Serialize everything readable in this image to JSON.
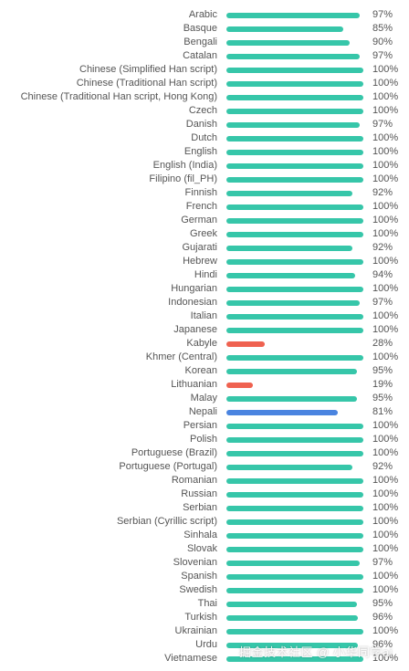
{
  "colors": {
    "complete": "#36c6a9",
    "partial": "#4a84e0",
    "low": "#ef6250"
  },
  "rows": [
    {
      "name": "Arabic",
      "percent": 97,
      "label": "97%"
    },
    {
      "name": "Basque",
      "percent": 85,
      "label": "85%"
    },
    {
      "name": "Bengali",
      "percent": 90,
      "label": "90%"
    },
    {
      "name": "Catalan",
      "percent": 97,
      "label": "97%"
    },
    {
      "name": "Chinese (Simplified Han script)",
      "percent": 100,
      "label": "100%"
    },
    {
      "name": "Chinese (Traditional Han script)",
      "percent": 100,
      "label": "100%"
    },
    {
      "name": "Chinese (Traditional Han script, Hong Kong)",
      "percent": 100,
      "label": "100%"
    },
    {
      "name": "Czech",
      "percent": 100,
      "label": "100%"
    },
    {
      "name": "Danish",
      "percent": 97,
      "label": "97%"
    },
    {
      "name": "Dutch",
      "percent": 100,
      "label": "100%"
    },
    {
      "name": "English",
      "percent": 100,
      "label": "100%"
    },
    {
      "name": "English (India)",
      "percent": 100,
      "label": "100%"
    },
    {
      "name": "Filipino (fil_PH)",
      "percent": 100,
      "label": "100%"
    },
    {
      "name": "Finnish",
      "percent": 92,
      "label": "92%"
    },
    {
      "name": "French",
      "percent": 100,
      "label": "100%"
    },
    {
      "name": "German",
      "percent": 100,
      "label": "100%"
    },
    {
      "name": "Greek",
      "percent": 100,
      "label": "100%"
    },
    {
      "name": "Gujarati",
      "percent": 92,
      "label": "92%"
    },
    {
      "name": "Hebrew",
      "percent": 100,
      "label": "100%"
    },
    {
      "name": "Hindi",
      "percent": 94,
      "label": "94%"
    },
    {
      "name": "Hungarian",
      "percent": 100,
      "label": "100%"
    },
    {
      "name": "Indonesian",
      "percent": 97,
      "label": "97%"
    },
    {
      "name": "Italian",
      "percent": 100,
      "label": "100%"
    },
    {
      "name": "Japanese",
      "percent": 100,
      "label": "100%"
    },
    {
      "name": "Kabyle",
      "percent": 28,
      "label": "28%"
    },
    {
      "name": "Khmer (Central)",
      "percent": 100,
      "label": "100%"
    },
    {
      "name": "Korean",
      "percent": 95,
      "label": "95%"
    },
    {
      "name": "Lithuanian",
      "percent": 19,
      "label": "19%"
    },
    {
      "name": "Malay",
      "percent": 95,
      "label": "95%"
    },
    {
      "name": "Nepali",
      "percent": 81,
      "label": "81%"
    },
    {
      "name": "Persian",
      "percent": 100,
      "label": "100%"
    },
    {
      "name": "Polish",
      "percent": 100,
      "label": "100%"
    },
    {
      "name": "Portuguese (Brazil)",
      "percent": 100,
      "label": "100%"
    },
    {
      "name": "Portuguese (Portugal)",
      "percent": 92,
      "label": "92%"
    },
    {
      "name": "Romanian",
      "percent": 100,
      "label": "100%"
    },
    {
      "name": "Russian",
      "percent": 100,
      "label": "100%"
    },
    {
      "name": "Serbian",
      "percent": 100,
      "label": "100%"
    },
    {
      "name": "Serbian (Cyrillic script)",
      "percent": 100,
      "label": "100%"
    },
    {
      "name": "Sinhala",
      "percent": 100,
      "label": "100%"
    },
    {
      "name": "Slovak",
      "percent": 100,
      "label": "100%"
    },
    {
      "name": "Slovenian",
      "percent": 97,
      "label": "97%"
    },
    {
      "name": "Spanish",
      "percent": 100,
      "label": "100%"
    },
    {
      "name": "Swedish",
      "percent": 100,
      "label": "100%"
    },
    {
      "name": "Thai",
      "percent": 95,
      "label": "95%"
    },
    {
      "name": "Turkish",
      "percent": 96,
      "label": "96%"
    },
    {
      "name": "Ukrainian",
      "percent": 100,
      "label": "100%"
    },
    {
      "name": "Urdu",
      "percent": 96,
      "label": "96%"
    },
    {
      "name": "Vietnamese",
      "percent": 100,
      "label": "100%"
    }
  ],
  "watermark": "掘金技术社区 @ 小华同学ai"
}
